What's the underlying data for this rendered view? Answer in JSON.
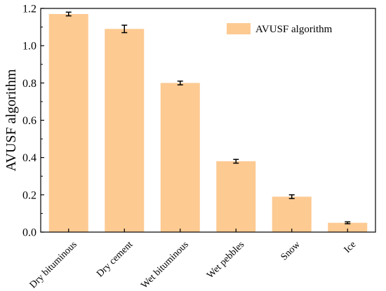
{
  "chart_data": {
    "type": "bar",
    "categories": [
      "Dry bituminous",
      "Dry cement",
      "Wet bituminous",
      "Wet pebbles",
      "Snow",
      "Ice"
    ],
    "series": [
      {
        "name": "AVUSF algorithm",
        "values": [
          1.17,
          1.09,
          0.8,
          0.38,
          0.19,
          0.05
        ],
        "errors": [
          0.01,
          0.02,
          0.01,
          0.01,
          0.01,
          0.005
        ]
      }
    ],
    "title": "",
    "xlabel": "",
    "ylabel": "AVUSF algorithm",
    "ylim": [
      0,
      1.2
    ],
    "yticks": [
      "0.0",
      "0.2",
      "0.4",
      "0.6",
      "0.8",
      "1.0",
      "1.2"
    ],
    "grid": false,
    "legend_position": "top-right",
    "colors": {
      "bar": "#FDCA92",
      "error_bar": "#000000",
      "axis": "#000000"
    }
  }
}
